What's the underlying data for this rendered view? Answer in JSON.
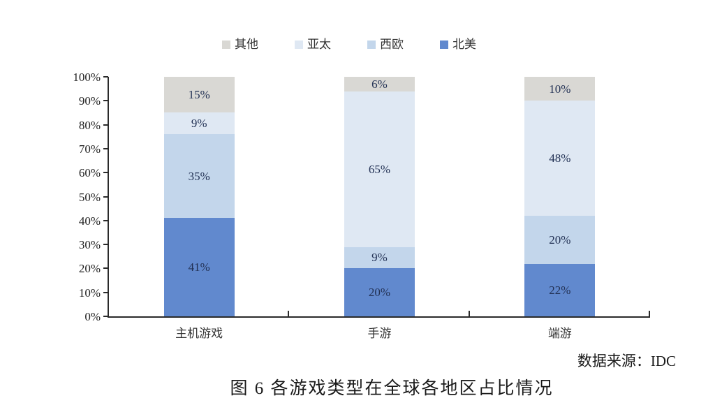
{
  "figure": {
    "source_note": "数据来源：IDC",
    "caption": "图 6 各游戏类型在全球各地区占比情况"
  },
  "chart_data": {
    "type": "bar",
    "subtype": "stacked-100-percent",
    "title": "",
    "xlabel": "",
    "ylabel": "",
    "categories": [
      "主机游戏",
      "手游",
      "端游"
    ],
    "series": [
      {
        "name": "北美",
        "color": "#6189ce",
        "values": [
          41,
          20,
          22
        ]
      },
      {
        "name": "西欧",
        "color": "#c3d6eb",
        "values": [
          35,
          9,
          20
        ]
      },
      {
        "name": "亚太",
        "color": "#dfe8f3",
        "values": [
          9,
          65,
          48
        ]
      },
      {
        "name": "其他",
        "color": "#d9d8d4",
        "values": [
          15,
          6,
          10
        ]
      }
    ],
    "stack_order_note": "series listed bottom-to-top",
    "legend": [
      "其他",
      "亚太",
      "西欧",
      "北美"
    ],
    "legend_position": "top",
    "value_suffix": "%",
    "y_axis": {
      "min": 0,
      "max": 100,
      "step": 10,
      "tick_labels": [
        "0%",
        "10%",
        "20%",
        "30%",
        "40%",
        "50%",
        "60%",
        "70%",
        "80%",
        "90%",
        "100%"
      ]
    },
    "grid": false,
    "label_color": "#233255",
    "axis_color": "#2a2a2a",
    "text_color": "#222222"
  }
}
